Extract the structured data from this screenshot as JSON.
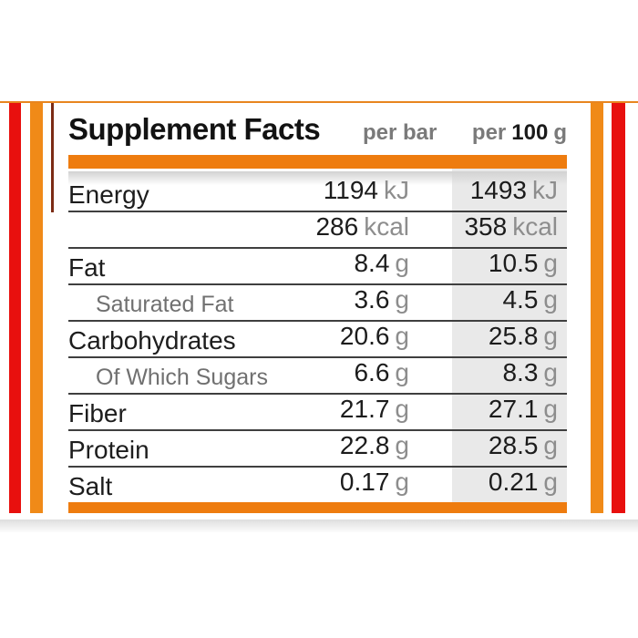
{
  "header": {
    "title": "Supplement Facts",
    "col_per_bar": "per bar",
    "col_per_100": {
      "prefix": "per",
      "amount": "100",
      "unit": "g"
    }
  },
  "table": {
    "rows": [
      {
        "label": "Energy",
        "per_bar": {
          "value": "1194",
          "unit": "kJ"
        },
        "per_100g": {
          "value": "1493",
          "unit": "kJ"
        }
      },
      {
        "label": "",
        "per_bar": {
          "value": "286",
          "unit": "kcal"
        },
        "per_100g": {
          "value": "358",
          "unit": "kcal"
        }
      },
      {
        "label": "Fat",
        "per_bar": {
          "value": "8.4",
          "unit": "g"
        },
        "per_100g": {
          "value": "10.5",
          "unit": "g"
        }
      },
      {
        "label": "Saturated Fat",
        "per_bar": {
          "value": "3.6",
          "unit": "g"
        },
        "per_100g": {
          "value": "4.5",
          "unit": "g"
        }
      },
      {
        "label": "Carbohydrates",
        "per_bar": {
          "value": "20.6",
          "unit": "g"
        },
        "per_100g": {
          "value": "25.8",
          "unit": "g"
        }
      },
      {
        "label": "Of Which Sugars",
        "per_bar": {
          "value": "6.6",
          "unit": "g"
        },
        "per_100g": {
          "value": "8.3",
          "unit": "g"
        }
      },
      {
        "label": "Fiber",
        "per_bar": {
          "value": "21.7",
          "unit": "g"
        },
        "per_100g": {
          "value": "27.1",
          "unit": "g"
        }
      },
      {
        "label": "Protein",
        "per_bar": {
          "value": "22.8",
          "unit": "g"
        },
        "per_100g": {
          "value": "28.5",
          "unit": "g"
        }
      },
      {
        "label": "Salt",
        "per_bar": {
          "value": "0.17",
          "unit": "g"
        },
        "per_100g": {
          "value": "0.21",
          "unit": "g"
        }
      }
    ]
  },
  "colors": {
    "orange_bar": "#ee7c0f",
    "stripe_orange": "#f08a18",
    "stripe_red": "#e8100e",
    "top_line": "#e8851f",
    "dark_edge": "#7c2c15",
    "gray_col": "#e9e9e9",
    "separator": "#3f3f3f",
    "title_color": "#121212",
    "label_color": "#1d1d1d",
    "sub_label_color": "#707070",
    "unit_color": "#8d8d8d",
    "header_gray": "#7a7a7a"
  }
}
